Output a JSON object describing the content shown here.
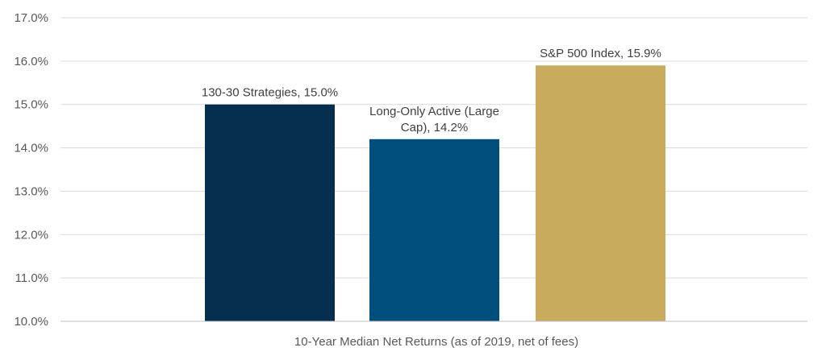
{
  "chart_data": {
    "type": "bar",
    "title": "",
    "xlabel": "10-Year Median Net Returns (as of 2019, net of fees)",
    "ylabel": "",
    "ylim": [
      10.0,
      17.0
    ],
    "yticks": [
      "10.0%",
      "11.0%",
      "12.0%",
      "13.0%",
      "14.0%",
      "15.0%",
      "16.0%",
      "17.0%"
    ],
    "yticks_values": [
      10,
      11,
      12,
      13,
      14,
      15,
      16,
      17
    ],
    "grid": true,
    "legend": "none",
    "series": [
      {
        "category": "130-30 Strategies",
        "value": 15.0,
        "color": "#052f4f",
        "label_lines": [
          "130-30 Strategies, 15.0%"
        ]
      },
      {
        "category": "Long-Only Active (Large Cap)",
        "value": 14.2,
        "color": "#004e7c",
        "label_lines": [
          "Long-Only Active (Large",
          "Cap), 14.2%"
        ]
      },
      {
        "category": "S&P 500 Index",
        "value": 15.9,
        "color": "#c9ab5e",
        "label_lines": [
          "S&P 500 Index, 15.9%"
        ]
      }
    ]
  }
}
